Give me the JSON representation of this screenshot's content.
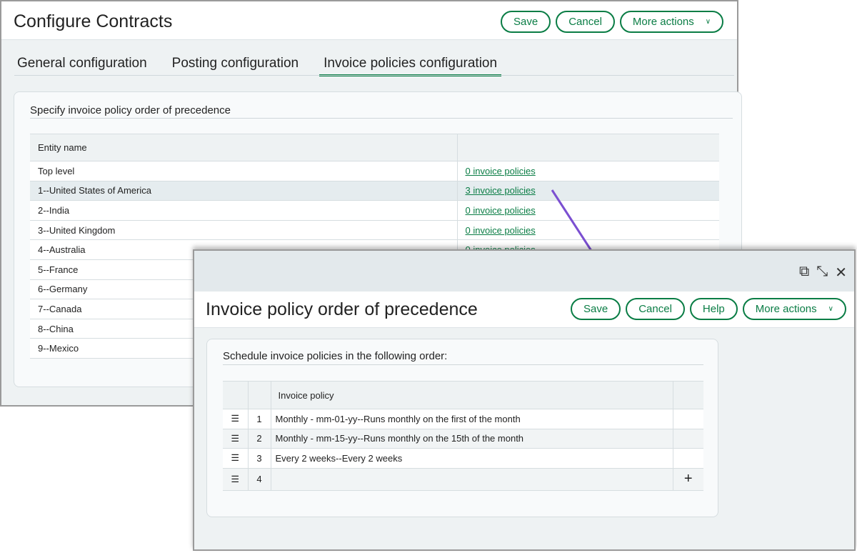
{
  "main": {
    "title": "Configure Contracts",
    "buttons": {
      "save": "Save",
      "cancel": "Cancel",
      "more": "More actions"
    },
    "tabs": [
      "General configuration",
      "Posting configuration",
      "Invoice policies configuration"
    ],
    "section_title": "Specify invoice policy order of precedence",
    "table": {
      "headers": [
        "Entity name",
        ""
      ],
      "rows": [
        [
          "Top level",
          "0 invoice policies"
        ],
        [
          "1--United States of America",
          "3 invoice policies"
        ],
        [
          "2--India",
          "0 invoice policies"
        ],
        [
          "3--United Kingdom",
          "0 invoice policies"
        ],
        [
          "4--Australia",
          "0 invoice policies"
        ],
        [
          "5--France",
          ""
        ],
        [
          "6--Germany",
          ""
        ],
        [
          "7--Canada",
          ""
        ],
        [
          "8--China",
          ""
        ],
        [
          "9--Mexico",
          ""
        ]
      ]
    }
  },
  "dialog": {
    "title": "Invoice policy order of precedence",
    "buttons": {
      "save": "Save",
      "cancel": "Cancel",
      "help": "Help",
      "more": "More actions"
    },
    "section_title": "Schedule invoice policies in the following order:",
    "table": {
      "headers": [
        "",
        "",
        "Invoice policy",
        ""
      ],
      "rows": [
        [
          "1",
          "Monthly - mm-01-yy--Runs monthly on the first of the month"
        ],
        [
          "2",
          "Monthly - mm-15-yy--Runs monthly on the 15th of the month"
        ],
        [
          "3",
          "Every 2 weeks--Every 2 weeks"
        ],
        [
          "4",
          ""
        ]
      ]
    },
    "icons": [
      "open-new-window-icon",
      "expand-icon",
      "close-icon"
    ]
  },
  "colors": {
    "accent": "#0a7d45",
    "arrow": "#7b4fd1"
  }
}
